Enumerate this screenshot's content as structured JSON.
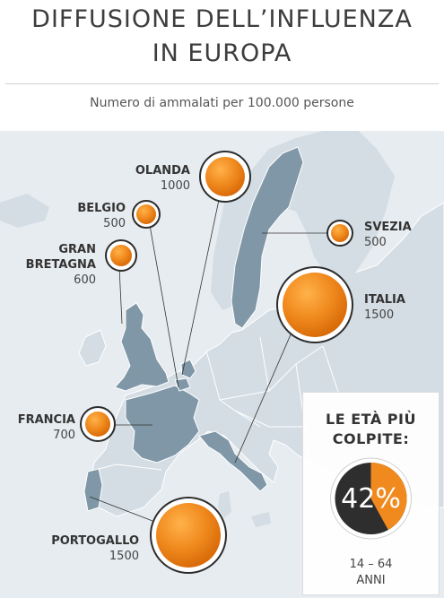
{
  "header": {
    "title_line1": "DIFFUSIONE DELL’INFLUENZA",
    "title_line2": "IN EUROPA",
    "subtitle": "Numero di ammalati per 100.000 persone"
  },
  "countries": [
    {
      "name": "OLANDA",
      "value": "1000"
    },
    {
      "name": "BELGIO",
      "value": "500"
    },
    {
      "name": "GRAN",
      "name_line2": "BRETAGNA",
      "value": "600"
    },
    {
      "name": "SVEZIA",
      "value": "500"
    },
    {
      "name": "ITALIA",
      "value": "1500"
    },
    {
      "name": "FRANCIA",
      "value": "700"
    },
    {
      "name": "PORTOGALLO",
      "value": "1500"
    }
  ],
  "age_panel": {
    "title_line1": "LE ETÀ PIÙ",
    "title_line2": "COLPITE:",
    "percent_label": "42%",
    "percent_value": 42,
    "age_range": "14 – 64",
    "age_unit": "ANNI"
  },
  "colors": {
    "sea": "#e7ecf0",
    "land": "#d4dde4",
    "highlight": "#7f97a6",
    "border_line": "#ffffff",
    "bubble": "#f08a1e",
    "bubble_dark": "#d86a08",
    "ring": "#2c2c2c",
    "donut_dark": "#2e2e2e"
  }
}
